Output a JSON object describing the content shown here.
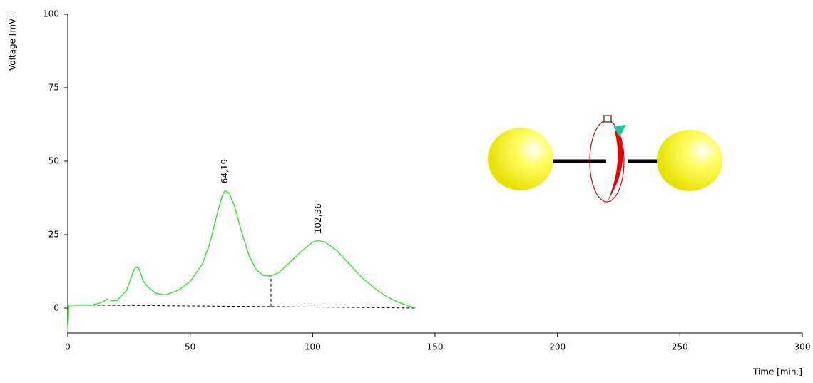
{
  "chart_data": {
    "type": "line",
    "x_label": "Time [min.]",
    "y_label": "Voltage [mV]",
    "x": [
      0,
      0.5,
      1,
      10,
      14,
      16,
      18,
      20,
      24,
      27,
      28,
      29,
      31,
      33,
      36,
      40,
      45,
      50,
      55,
      58,
      61,
      63,
      64.19,
      66,
      68,
      71,
      74,
      77,
      80,
      83,
      86,
      90,
      95,
      100,
      102.36,
      105,
      110,
      115,
      120,
      125,
      130,
      135,
      140,
      142
    ],
    "values": [
      -8,
      1,
      1,
      1,
      2,
      3,
      2.5,
      2.5,
      6,
      13,
      14,
      13.5,
      9,
      7,
      5,
      4.5,
      6,
      9,
      15,
      22,
      32,
      38,
      40,
      39,
      35,
      26,
      18,
      13,
      11,
      11,
      12,
      15,
      19,
      22.5,
      23,
      22.5,
      19.5,
      15,
      10.5,
      7,
      4,
      2,
      0.5,
      0
    ],
    "color": "#33ee33",
    "baseline": {
      "x": [
        10,
        83,
        142
      ],
      "values": [
        1,
        0.5,
        0
      ]
    },
    "drop_lines": [
      {
        "x": 83,
        "low": 0.5,
        "high": 11
      }
    ],
    "annotations": [
      {
        "text": "64,19",
        "x": 64.19,
        "y": 40
      },
      {
        "text": "102,36",
        "x": 102.36,
        "y": 23
      }
    ],
    "xlim": [
      0,
      300
    ],
    "xticks": [
      0,
      50,
      100,
      150,
      200,
      250,
      300
    ],
    "ylim": [
      -8.5,
      100
    ],
    "yticks": [
      0,
      25,
      50,
      75,
      100
    ],
    "grid": false
  }
}
